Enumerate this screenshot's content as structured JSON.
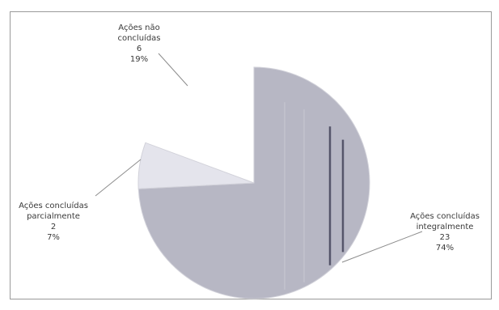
{
  "chart_data": {
    "type": "pie",
    "title": "",
    "slices": [
      {
        "label_lines": [
          "Ações concluídas",
          "integralmente"
        ],
        "value": 23,
        "percent": "74%",
        "color": "#b7b7c4",
        "exploded": false
      },
      {
        "label_lines": [
          "Ações concluídas",
          "parcialmente"
        ],
        "value": 2,
        "percent": "7%",
        "color": "#e4e4ec",
        "exploded": false
      },
      {
        "label_lines": [
          "Ações não",
          "concluídas"
        ],
        "value": 6,
        "percent": "19%",
        "color": "#ffffff",
        "exploded": true
      }
    ],
    "start_angle_deg": 0,
    "direction": "clockwise",
    "legend": "none",
    "data_labels": "label, value and percent"
  },
  "colors": {
    "border": "#9a9a9a",
    "text": "#3a3a3a",
    "leader_line": "#8c8c8c"
  }
}
